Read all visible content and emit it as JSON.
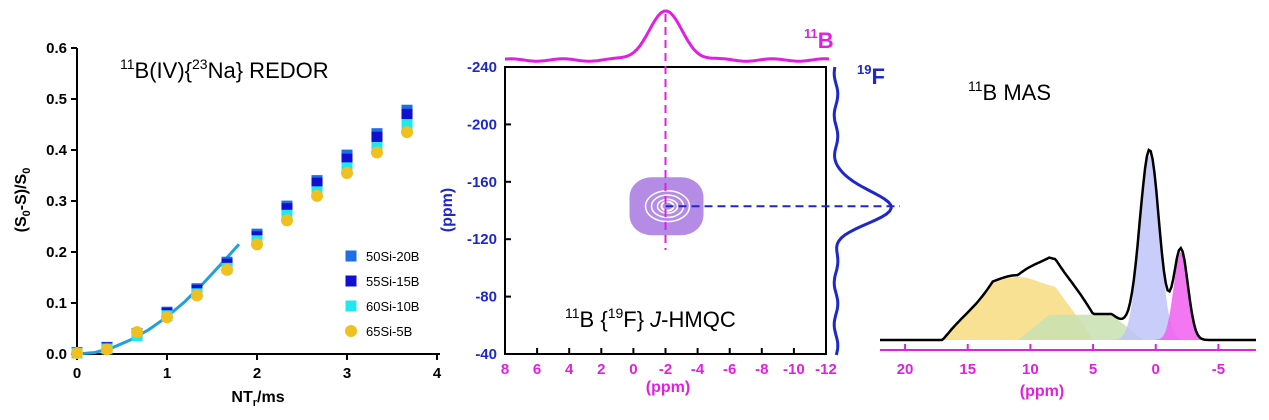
{
  "chart_data": [
    {
      "type": "scatter",
      "title_parts": {
        "pre": "11",
        "a": "B(IV){",
        "sup": "23",
        "b": "Na} REDOR"
      },
      "ylabel_parts": {
        "a": "(S",
        "s1": "0",
        "b": "-S)/S",
        "s2": "0"
      },
      "xlabel_parts": {
        "a": "NT",
        "sub": "r",
        "b": "/ms"
      },
      "xlim": [
        0,
        4
      ],
      "ylim": [
        0,
        0.6
      ],
      "xticks": [
        "0",
        "1",
        "2",
        "3",
        "4"
      ],
      "yticks": [
        "0.0",
        "0.1",
        "0.2",
        "0.3",
        "0.4",
        "0.5",
        "0.6"
      ],
      "x": [
        0,
        0.333,
        0.667,
        1.0,
        1.333,
        1.667,
        2.0,
        2.333,
        2.667,
        3.0,
        3.333,
        3.667
      ],
      "series": [
        {
          "name": "50Si-20B",
          "color": "#1e6ee6",
          "marker": "square",
          "values": [
            0.003,
            0.013,
            0.04,
            0.082,
            0.128,
            0.18,
            0.235,
            0.29,
            0.34,
            0.39,
            0.432,
            0.478
          ]
        },
        {
          "name": "55Si-15B",
          "color": "#1010d0",
          "marker": "square",
          "values": [
            0.003,
            0.012,
            0.038,
            0.08,
            0.125,
            0.176,
            0.23,
            0.285,
            0.335,
            0.382,
            0.425,
            0.47
          ]
        },
        {
          "name": "60Si-10B",
          "color": "#20e8f0",
          "marker": "square",
          "values": [
            0.002,
            0.01,
            0.036,
            0.075,
            0.118,
            0.168,
            0.222,
            0.272,
            0.318,
            0.365,
            0.405,
            0.45
          ]
        },
        {
          "name": "65Si-5B",
          "color": "#f0c020",
          "marker": "circle",
          "values": [
            0.002,
            0.009,
            0.043,
            0.072,
            0.115,
            0.165,
            0.215,
            0.262,
            0.31,
            0.355,
            0.395,
            0.435
          ]
        }
      ],
      "fit_line": {
        "color": "#20a0e0",
        "x": [
          0,
          0.2,
          0.4,
          0.6,
          0.8,
          1.0,
          1.2,
          1.4,
          1.6,
          1.8
        ],
        "y": [
          0,
          0.003,
          0.013,
          0.028,
          0.048,
          0.073,
          0.103,
          0.138,
          0.176,
          0.215
        ]
      }
    },
    {
      "type": "heatmap",
      "title_parts": {
        "pre": "11",
        "a": "B {",
        "sup": "19",
        "b": "F}  ",
        "j": "J",
        "c": "-HMQC"
      },
      "xlabel": "(ppm)",
      "ylabel": "(ppm)",
      "xlim": [
        8,
        -12
      ],
      "ylim": [
        -40,
        -240
      ],
      "xticks": [
        "8",
        "6",
        "4",
        "2",
        "0",
        "-2",
        "-4",
        "-6",
        "-8",
        "-10",
        "-12"
      ],
      "yticks": [
        "-240",
        "-200",
        "-160",
        "-120",
        "-80",
        "-40"
      ],
      "top_projection_label": {
        "pre": "11",
        "text": "B"
      },
      "right_projection_label": {
        "pre": "19",
        "text": "F"
      },
      "peak": {
        "x": -2,
        "y": -143
      },
      "contour_color": "#b48ce6",
      "top_color": "#e020e0",
      "right_color": "#1e28c8"
    },
    {
      "type": "area",
      "title_parts": {
        "pre": "11",
        "text": "B MAS"
      },
      "xlabel": "(ppm)",
      "xlim": [
        22,
        -8
      ],
      "xticks": [
        "20",
        "15",
        "10",
        "5",
        "0",
        "-5"
      ],
      "components": [
        {
          "name": "yellow",
          "color": "#f8dc80",
          "center": 12.5,
          "height": 0.3
        },
        {
          "name": "green",
          "color": "#c8e0b0",
          "center": 7,
          "height": 0.12
        },
        {
          "name": "lavender",
          "color": "#c0c4f8",
          "center": 0.5,
          "height": 0.88
        },
        {
          "name": "magenta",
          "color": "#f060f0",
          "center": -2,
          "height": 0.42
        }
      ],
      "envelope_color": "#000000",
      "axis_color": "#e020e0"
    }
  ]
}
